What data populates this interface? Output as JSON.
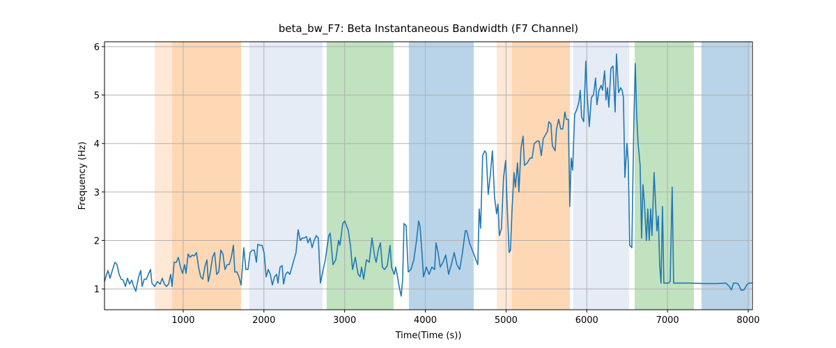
{
  "chart_data": {
    "type": "line",
    "title": "beta_bw_F7: Beta Instantaneous Bandwidth (F7 Channel)",
    "x_label": "Time(Time (s))",
    "y_label": "Frequency (Hz)",
    "xlim": [
      25,
      8052
    ],
    "ylim": [
      0.57,
      6.1
    ],
    "xticks": [
      1000,
      2000,
      3000,
      4000,
      5000,
      6000,
      7000,
      8000
    ],
    "yticks": [
      1,
      2,
      3,
      4,
      5,
      6
    ],
    "grid": true,
    "spans": [
      {
        "x0": 646,
        "x1": 862,
        "color": "#ffe9d6"
      },
      {
        "x0": 862,
        "x1": 1717,
        "color": "#fed8b4"
      },
      {
        "x0": 1820,
        "x1": 2726,
        "color": "#e5ecf6"
      },
      {
        "x0": 2778,
        "x1": 3607,
        "color": "#c0e2bf"
      },
      {
        "x0": 3796,
        "x1": 4599,
        "color": "#b9d4e8"
      },
      {
        "x0": 4884,
        "x1": 5074,
        "color": "#ffe9d6"
      },
      {
        "x0": 5074,
        "x1": 5790,
        "color": "#fed8b4"
      },
      {
        "x0": 5833,
        "x1": 6524,
        "color": "#e5ecf6"
      },
      {
        "x0": 6593,
        "x1": 7327,
        "color": "#c0e2bf"
      },
      {
        "x0": 7421,
        "x1": 8034,
        "color": "#b9d4e8"
      }
    ],
    "x": [
      25,
      51,
      68,
      94,
      129,
      154,
      180,
      206,
      232,
      258,
      284,
      310,
      336,
      362,
      387,
      413,
      448,
      474,
      491,
      517,
      543,
      569,
      595,
      612,
      646,
      681,
      715,
      741,
      767,
      793,
      819,
      845,
      862,
      888,
      914,
      940,
      966,
      992,
      1018,
      1035,
      1061,
      1087,
      1113,
      1139,
      1165,
      1190,
      1216,
      1242,
      1268,
      1294,
      1311,
      1337,
      1363,
      1389,
      1415,
      1441,
      1466,
      1492,
      1518,
      1544,
      1570,
      1596,
      1622,
      1639,
      1665,
      1691,
      1717,
      1751,
      1777,
      1803,
      1829,
      1855,
      1881,
      1907,
      1924,
      1950,
      1976,
      2002,
      2028,
      2054,
      2079,
      2105,
      2131,
      2157,
      2174,
      2200,
      2226,
      2243,
      2269,
      2295,
      2321,
      2347,
      2372,
      2398,
      2424,
      2450,
      2476,
      2502,
      2528,
      2545,
      2571,
      2597,
      2623,
      2649,
      2674,
      2700,
      2735,
      2761,
      2804,
      2821,
      2856,
      2890,
      2925,
      2942,
      2977,
      3002,
      3046,
      3072,
      3098,
      3132,
      3167,
      3193,
      3210,
      3236,
      3270,
      3305,
      3339,
      3374,
      3391,
      3417,
      3443,
      3468,
      3494,
      3529,
      3563,
      3581,
      3615,
      3632,
      3650,
      3675,
      3701,
      3719,
      3736,
      3762,
      3788,
      3822,
      3857,
      3891,
      3917,
      3934,
      3960,
      3977,
      4012,
      4046,
      4081,
      4115,
      4132,
      4158,
      4184,
      4219,
      4253,
      4288,
      4322,
      4357,
      4391,
      4426,
      4460,
      4495,
      4512,
      4547,
      4581,
      4616,
      4650,
      4667,
      4685,
      4710,
      4736,
      4754,
      4779,
      4805,
      4831,
      4857,
      4883,
      4900,
      4917,
      4943,
      4969,
      4995,
      5012,
      5038,
      5055,
      5073,
      5099,
      5116,
      5142,
      5159,
      5185,
      5211,
      5228,
      5263,
      5297,
      5323,
      5349,
      5384,
      5410,
      5436,
      5461,
      5496,
      5513,
      5531,
      5556,
      5574,
      5608,
      5625,
      5652,
      5677,
      5703,
      5729,
      5746,
      5772,
      5790,
      5807,
      5824,
      5850,
      5876,
      5902,
      5919,
      5936,
      5962,
      5988,
      6005,
      6031,
      6057,
      6083,
      6109,
      6126,
      6152,
      6178,
      6195,
      6221,
      6239,
      6256,
      6273,
      6299,
      6325,
      6351,
      6368,
      6394,
      6420,
      6437,
      6454,
      6472,
      6498,
      6515,
      6532,
      6558,
      6584,
      6601,
      6618,
      6636,
      6661,
      6679,
      6696,
      6713,
      6739,
      6756,
      6774,
      6791,
      6808,
      6834,
      6851,
      6869,
      6886,
      6903,
      6920,
      6938,
      6955,
      6981,
      7015,
      7033,
      7058,
      7076,
      7102,
      7274,
      7447,
      7619,
      7723,
      7766,
      7792,
      7818,
      7852,
      7878,
      7913,
      7947,
      7982,
      8008,
      8051
    ],
    "series": [
      {
        "name": "beta_bw_F7",
        "color": "#1f77b4",
        "values": [
          1.15,
          1.3,
          1.38,
          1.22,
          1.42,
          1.55,
          1.5,
          1.3,
          1.2,
          1.18,
          1.05,
          1.22,
          1.1,
          1.18,
          1.05,
          0.95,
          1.25,
          1.38,
          1.05,
          1.2,
          1.2,
          1.3,
          1.4,
          1.12,
          1.05,
          1.15,
          1.1,
          1.22,
          1.1,
          1.05,
          1.1,
          1.3,
          1.05,
          1.55,
          1.55,
          1.65,
          1.45,
          1.32,
          1.5,
          1.32,
          1.72,
          1.65,
          1.7,
          1.68,
          1.75,
          1.45,
          1.25,
          1.2,
          1.45,
          1.6,
          1.15,
          1.35,
          1.65,
          1.75,
          1.3,
          1.35,
          1.8,
          1.72,
          1.4,
          1.5,
          1.5,
          1.65,
          1.9,
          1.35,
          1.35,
          1.25,
          1.08,
          1.85,
          1.4,
          1.4,
          1.75,
          1.8,
          1.8,
          1.55,
          1.92,
          1.9,
          1.9,
          1.75,
          1.25,
          1.4,
          1.3,
          1.08,
          1.25,
          1.3,
          1.12,
          1.45,
          1.48,
          1.1,
          1.3,
          1.35,
          1.3,
          1.45,
          1.6,
          1.75,
          2.22,
          2.0,
          2.05,
          2.05,
          2.08,
          1.95,
          2.05,
          1.85,
          2.0,
          2.1,
          2.05,
          1.12,
          1.4,
          1.6,
          2.1,
          2.15,
          1.5,
          1.6,
          2.0,
          1.9,
          2.35,
          2.4,
          2.2,
          1.9,
          1.4,
          1.65,
          1.3,
          1.25,
          1.45,
          1.2,
          1.6,
          1.55,
          2.05,
          1.65,
          1.55,
          1.8,
          1.95,
          1.45,
          1.4,
          1.48,
          1.9,
          1.45,
          1.3,
          1.45,
          1.3,
          1.05,
          0.85,
          1.2,
          2.35,
          2.3,
          1.35,
          1.4,
          1.6,
          2.0,
          2.4,
          2.3,
          1.7,
          1.25,
          1.45,
          1.3,
          1.45,
          1.4,
          1.95,
          1.75,
          1.45,
          1.55,
          1.7,
          1.3,
          1.5,
          1.75,
          1.5,
          1.4,
          1.75,
          2.2,
          2.2,
          1.95,
          1.8,
          1.65,
          1.5,
          2.65,
          2.25,
          3.75,
          3.85,
          3.8,
          2.95,
          3.35,
          3.85,
          2.9,
          2.55,
          2.75,
          2.1,
          2.25,
          3.3,
          3.65,
          2.8,
          1.75,
          1.8,
          2.6,
          3.4,
          3.1,
          3.6,
          3.0,
          3.9,
          4.15,
          3.55,
          3.6,
          3.7,
          3.7,
          4.0,
          4.05,
          4.05,
          3.75,
          4.1,
          4.2,
          4.25,
          4.45,
          4.4,
          3.95,
          3.85,
          4.3,
          4.5,
          4.3,
          4.3,
          4.65,
          4.5,
          4.5,
          2.7,
          3.7,
          3.45,
          4.6,
          4.7,
          4.85,
          5.1,
          4.55,
          4.45,
          5.7,
          5.0,
          4.35,
          4.95,
          5.0,
          5.35,
          4.8,
          5.1,
          5.2,
          5.1,
          5.5,
          4.9,
          5.15,
          4.75,
          5.55,
          5.6,
          4.65,
          5.85,
          5.05,
          5.15,
          5.1,
          4.95,
          3.3,
          4.0,
          3.6,
          1.9,
          1.85,
          4.5,
          5.65,
          4.6,
          4.0,
          3.55,
          2.05,
          3.15,
          2.8,
          2.0,
          2.65,
          2.0,
          2.65,
          2.1,
          3.4,
          2.8,
          2.2,
          2.5,
          1.5,
          1.12,
          2.7,
          1.12,
          1.12,
          1.12,
          1.15,
          3.1,
          1.12,
          1.12,
          1.12,
          1.11,
          1.11,
          1.12,
          1.05,
          0.98,
          1.12,
          1.12,
          1.1,
          0.97,
          0.98,
          1.08,
          1.12,
          1.12
        ]
      }
    ]
  }
}
